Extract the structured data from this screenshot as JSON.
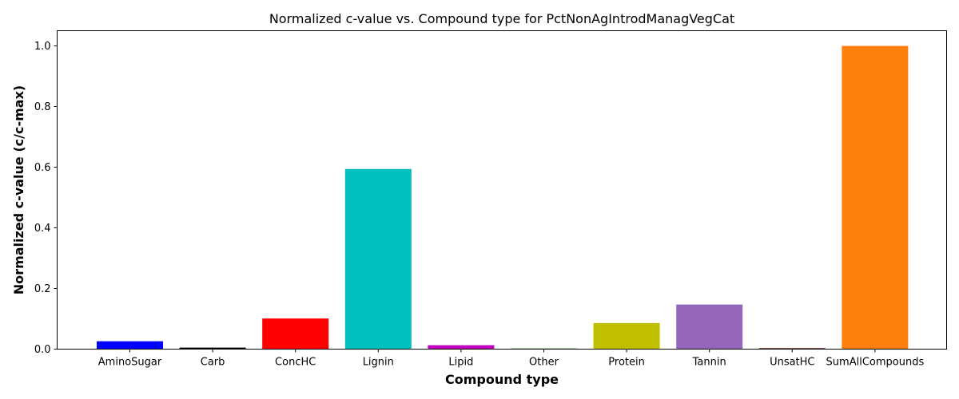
{
  "chart_data": {
    "type": "bar",
    "title": "Normalized c-value vs. Compound type for PctNonAgIntrodManagVegCat",
    "xlabel": "Compound type",
    "ylabel": "Normalized c-value (c/c-max)",
    "categories": [
      "AminoSugar",
      "Carb",
      "ConcHC",
      "Lignin",
      "Lipid",
      "Other",
      "Protein",
      "Tannin",
      "UnsatHC",
      "SumAllCompounds"
    ],
    "values": [
      0.026,
      0.005,
      0.101,
      0.594,
      0.013,
      0.002,
      0.086,
      0.147,
      0.004,
      1.0
    ],
    "colors": [
      "#0000ff",
      "#000000",
      "#ff0000",
      "#00bfbf",
      "#bf00bf",
      "#006400",
      "#bfbf00",
      "#9467bd",
      "#8c564b",
      "#ff7f0e"
    ],
    "ylim": [
      0,
      1.05
    ],
    "yticks": [
      0.0,
      0.2,
      0.4,
      0.6,
      0.8,
      1.0
    ],
    "ytick_labels": [
      "0.0",
      "0.2",
      "0.4",
      "0.6",
      "0.8",
      "1.0"
    ],
    "grid": false,
    "legend": "none"
  }
}
